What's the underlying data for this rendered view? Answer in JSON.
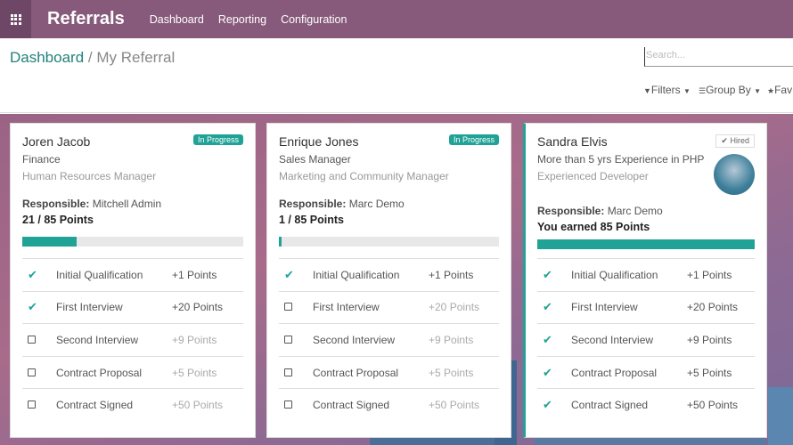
{
  "nav": {
    "app": "Referrals",
    "menu": [
      "Dashboard",
      "Reporting",
      "Configuration"
    ]
  },
  "breadcrumb": {
    "parent": "Dashboard",
    "sep": "/",
    "current": "My Referral"
  },
  "search": {
    "placeholder": "Search..."
  },
  "tools": {
    "filters": "Filters",
    "group_by": "Group By",
    "favorites": "Fav"
  },
  "colors": {
    "nav": "#875a7b",
    "accent": "#21a297"
  },
  "cards": [
    {
      "name": "Joren Jacob",
      "subtitle": "Finance",
      "job": "Human Resources Manager",
      "badge": "In Progress",
      "responsible_label": "Responsible:",
      "responsible": "Mitchell Admin",
      "points": "21 / 85 Points",
      "progress": 0.247,
      "steps": [
        {
          "label": "Initial Qualification",
          "points": "+1 Points",
          "done": true
        },
        {
          "label": "First Interview",
          "points": "+20 Points",
          "done": true
        },
        {
          "label": "Second Interview",
          "points": "+9 Points",
          "done": false
        },
        {
          "label": "Contract Proposal",
          "points": "+5 Points",
          "done": false
        },
        {
          "label": "Contract Signed",
          "points": "+50 Points",
          "done": false
        }
      ]
    },
    {
      "name": "Enrique Jones",
      "subtitle": "Sales Manager",
      "job": "Marketing and Community Manager",
      "badge": "In Progress",
      "responsible_label": "Responsible:",
      "responsible": "Marc Demo",
      "points": "1 / 85 Points",
      "progress": 0.012,
      "steps": [
        {
          "label": "Initial Qualification",
          "points": "+1 Points",
          "done": true
        },
        {
          "label": "First Interview",
          "points": "+20 Points",
          "done": false
        },
        {
          "label": "Second Interview",
          "points": "+9 Points",
          "done": false
        },
        {
          "label": "Contract Proposal",
          "points": "+5 Points",
          "done": false
        },
        {
          "label": "Contract Signed",
          "points": "+50 Points",
          "done": false
        }
      ]
    },
    {
      "name": "Sandra Elvis",
      "subtitle": "More than 5 yrs Experience in PHP",
      "job": "Experienced Developer",
      "badge": "Hired",
      "responsible_label": "Responsible:",
      "responsible": "Marc Demo",
      "points": "You earned 85 Points",
      "progress": 1,
      "steps": [
        {
          "label": "Initial Qualification",
          "points": "+1 Points",
          "done": true
        },
        {
          "label": "First Interview",
          "points": "+20 Points",
          "done": true
        },
        {
          "label": "Second Interview",
          "points": "+9 Points",
          "done": true
        },
        {
          "label": "Contract Proposal",
          "points": "+5 Points",
          "done": true
        },
        {
          "label": "Contract Signed",
          "points": "+50 Points",
          "done": true
        }
      ]
    }
  ]
}
